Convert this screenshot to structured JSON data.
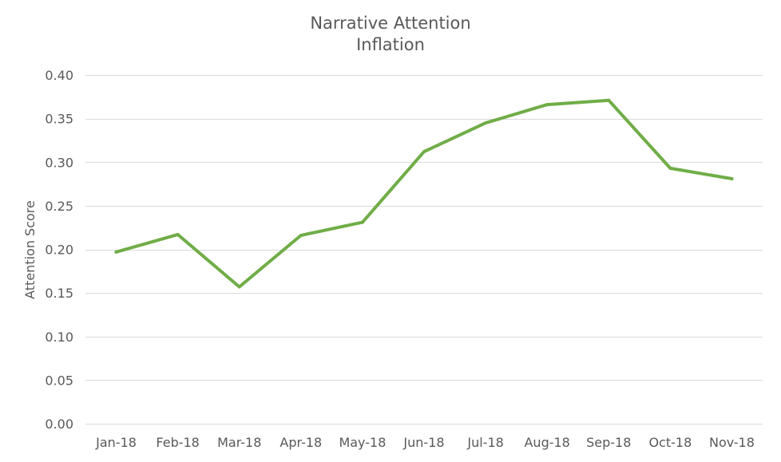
{
  "chart_data": {
    "type": "line",
    "title_lines": [
      "Narrative Attention",
      "Inflation"
    ],
    "xlabel": "",
    "ylabel": "Attention Score",
    "categories": [
      "Jan-18",
      "Feb-18",
      "Mar-18",
      "Apr-18",
      "May-18",
      "Jun-18",
      "Jul-18",
      "Aug-18",
      "Sep-18",
      "Oct-18",
      "Nov-18"
    ],
    "series": [
      {
        "values": [
          0.197,
          0.217,
          0.157,
          0.216,
          0.231,
          0.312,
          0.345,
          0.366,
          0.371,
          0.293,
          0.281
        ],
        "color": "#70ad47"
      }
    ],
    "ylim": [
      0,
      0.4
    ],
    "yticks": [
      "0.00",
      "0.05",
      "0.10",
      "0.15",
      "0.20",
      "0.25",
      "0.30",
      "0.35",
      "0.40"
    ],
    "grid": true,
    "legend": "none"
  }
}
